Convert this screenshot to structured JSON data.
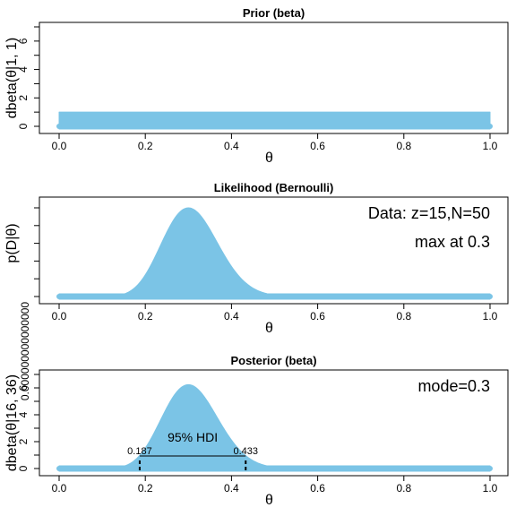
{
  "colors": {
    "fill": "#7BC4E6",
    "axis": "#000000",
    "background": "#ffffff"
  },
  "chart_data": [
    {
      "type": "area",
      "title": "Prior (beta)",
      "xlabel": "θ",
      "ylabel": "dbeta(θ|1, 1)",
      "xlim": [
        0,
        1
      ],
      "ylim": [
        0,
        7
      ],
      "xticks": [
        "0.0",
        "0.2",
        "0.4",
        "0.6",
        "0.8",
        "1.0"
      ],
      "yticks": [
        "0",
        "2",
        "4",
        "6"
      ],
      "distribution": {
        "kind": "beta",
        "a": 1,
        "b": 1
      },
      "annotations": []
    },
    {
      "type": "area",
      "title": "Likelihood (Bernoulli)",
      "xlabel": "θ",
      "ylabel": "p(D|θ)",
      "xlim": [
        0,
        1
      ],
      "ylim": [
        0,
        1.15
      ],
      "xticks": [
        "0.0",
        "0.2",
        "0.4",
        "0.6",
        "0.8",
        "1.0"
      ],
      "yticks": [
        "0.000000000000000"
      ],
      "distribution": {
        "kind": "bernoulli_likelihood",
        "z": 15,
        "N": 50
      },
      "annotations": [
        {
          "text": "Data: z=15,N=50",
          "position": "top-right"
        },
        {
          "text": "max at 0.3",
          "position": "top-right"
        }
      ]
    },
    {
      "type": "area",
      "title": "Posterior (beta)",
      "xlabel": "θ",
      "ylabel": "dbeta(θ|16, 36)",
      "xlim": [
        0,
        1
      ],
      "ylim": [
        0,
        7
      ],
      "xticks": [
        "0.0",
        "0.2",
        "0.4",
        "0.6",
        "0.8",
        "1.0"
      ],
      "yticks": [
        "0",
        "2",
        "4",
        "6"
      ],
      "distribution": {
        "kind": "beta",
        "a": 16,
        "b": 36
      },
      "annotations": [
        {
          "text": "mode=0.3",
          "position": "top-right"
        }
      ],
      "hdi": {
        "label": "95% HDI",
        "low": 0.187,
        "high": 0.433,
        "low_label": "0.187",
        "high_label": "0.433"
      }
    }
  ]
}
